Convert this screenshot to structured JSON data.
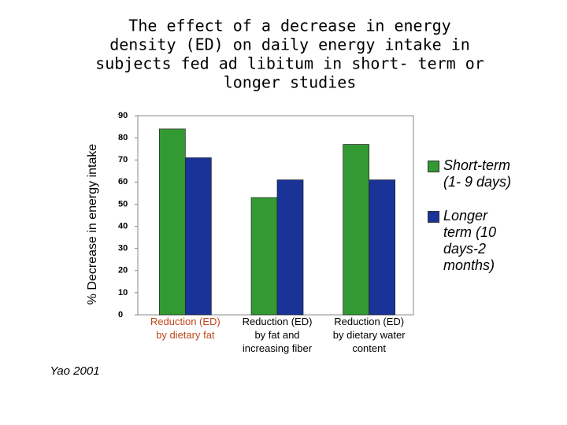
{
  "chart_data": {
    "type": "bar",
    "title": [
      "The effect  of a decrease  in energy",
      "density (ED) on daily  energy intake in",
      "subjects fed ad libitum in short- term or",
      "longer studies"
    ],
    "y_label": "% Decrease in energy intake",
    "source": "Yao 2001",
    "categories": [
      [
        "Reduction (ED)",
        "by dietary fat"
      ],
      [
        "Reduction (ED)",
        "by fat and",
        "increasing fiber"
      ],
      [
        "Reduction (ED)",
        "by dietary water",
        "content"
      ]
    ],
    "category_label_colors": [
      "#c0461b",
      "#000000",
      "#000000"
    ],
    "series": [
      {
        "name": "Short-term (1- 9 days)",
        "color": "#339933",
        "values": [
          84,
          53,
          77
        ]
      },
      {
        "name": "Longer term (10 days-2 months)",
        "color": "#1a3399",
        "values": [
          71,
          61,
          61
        ]
      }
    ],
    "ylim": [
      0,
      90
    ],
    "yticks": [
      0,
      10,
      20,
      30,
      40,
      50,
      60,
      70,
      80,
      90
    ],
    "grid": false
  }
}
